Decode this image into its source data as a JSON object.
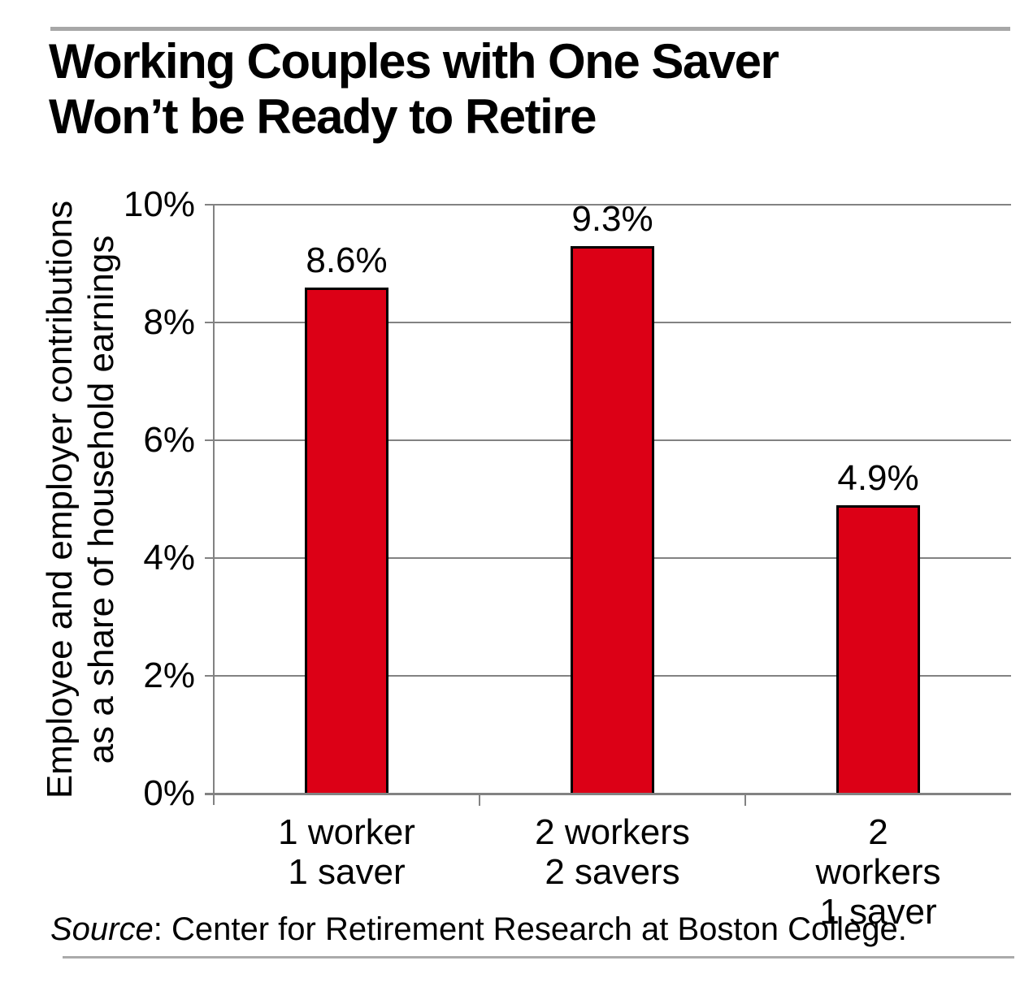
{
  "header": {
    "title_line1": "Working Couples with One Saver",
    "title_line2": "Won’t be Ready to Retire"
  },
  "source": {
    "prefix": "Source",
    "text": ": Center for Retirement Research at Boston College."
  },
  "chart_data": {
    "type": "bar",
    "title": "Working Couples with One Saver Won’t be Ready to Retire",
    "categories": [
      "1 worker 1 saver",
      "2 workers 2 savers",
      "2 workers 1 saver"
    ],
    "category_lines": [
      [
        "1 worker",
        "1 saver"
      ],
      [
        "2 workers",
        "2 savers"
      ],
      [
        "2 workers",
        "1 saver"
      ]
    ],
    "values": [
      8.6,
      9.3,
      4.9
    ],
    "data_labels": [
      "8.6%",
      "9.3%",
      "4.9%"
    ],
    "xlabel": "",
    "ylabel": "Employee and employer contributions as a share of household earnings",
    "ylabel_lines": [
      "Employee and employer contributions",
      "as a share of household earnings"
    ],
    "ylim": [
      0,
      10
    ],
    "yticks": [
      0,
      2,
      4,
      6,
      8,
      10
    ],
    "ytick_labels": [
      "0%",
      "2%",
      "4%",
      "6%",
      "8%",
      "10%"
    ],
    "grid": "horizontal-only",
    "legend": false,
    "bar_color": "#dc0016",
    "bar_border_color": "#000000",
    "gridline_color": "#828282"
  }
}
